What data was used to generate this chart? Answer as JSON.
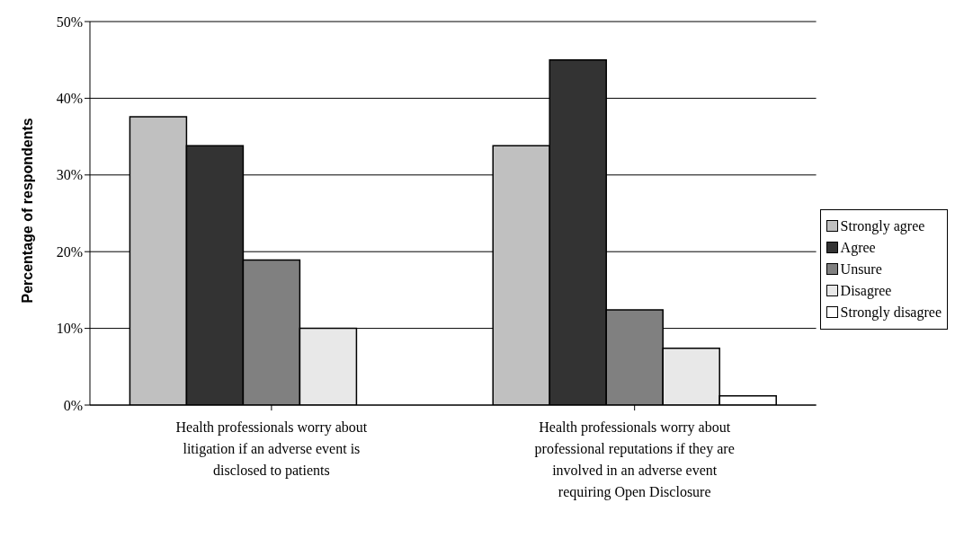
{
  "chart_data": {
    "type": "bar",
    "ylabel": "Percentage of respondents",
    "categories": [
      "Health professionals worry about litigation if an adverse event is disclosed to patients",
      "Health professionals worry about professional reputations if they are involved in an adverse event requiring Open Disclosure"
    ],
    "series": [
      {
        "name": "Strongly agree",
        "color": "#c0c0c0",
        "values": [
          37.6,
          33.8
        ]
      },
      {
        "name": "Agree",
        "color": "#333333",
        "values": [
          33.8,
          45
        ]
      },
      {
        "name": "Unsure",
        "color": "#808080",
        "values": [
          18.9,
          12.4
        ]
      },
      {
        "name": "Disagree",
        "color": "#e8e8e8",
        "values": [
          10,
          7.4
        ]
      },
      {
        "name": "Strongly disagree",
        "color": "#ffffff",
        "values": [
          0,
          1.2
        ]
      }
    ],
    "ylim": [
      0,
      50
    ],
    "yticks": [
      {
        "value": 0,
        "label": "0%"
      },
      {
        "value": 10,
        "label": "10%"
      },
      {
        "value": 20,
        "label": "20%"
      },
      {
        "value": 30,
        "label": "30%"
      },
      {
        "value": 40,
        "label": "40%"
      },
      {
        "value": 50,
        "label": "50%"
      }
    ],
    "grid": "y",
    "legend": "right"
  }
}
